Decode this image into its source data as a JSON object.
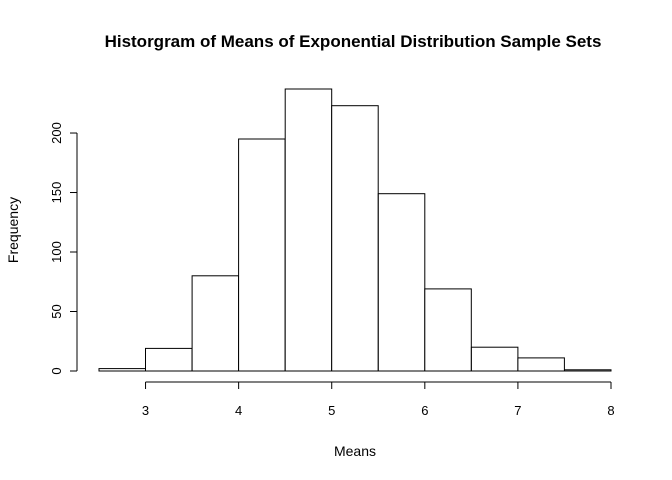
{
  "chart_data": {
    "type": "bar",
    "title": "Historgram of Means of Exponential Distribution Sample Sets",
    "xlabel": "Means",
    "ylabel": "Frequency",
    "bins": [
      {
        "start": 2.5,
        "end": 3.0,
        "count": 2
      },
      {
        "start": 3.0,
        "end": 3.5,
        "count": 19
      },
      {
        "start": 3.5,
        "end": 4.0,
        "count": 80
      },
      {
        "start": 4.0,
        "end": 4.5,
        "count": 195
      },
      {
        "start": 4.5,
        "end": 5.0,
        "count": 237
      },
      {
        "start": 5.0,
        "end": 5.5,
        "count": 223
      },
      {
        "start": 5.5,
        "end": 6.0,
        "count": 149
      },
      {
        "start": 6.0,
        "end": 6.5,
        "count": 69
      },
      {
        "start": 6.5,
        "end": 7.0,
        "count": 20
      },
      {
        "start": 7.0,
        "end": 7.5,
        "count": 11
      },
      {
        "start": 7.5,
        "end": 8.0,
        "count": 1
      }
    ],
    "x_ticks": [
      "3",
      "4",
      "5",
      "6",
      "7",
      "8"
    ],
    "y_ticks": [
      "0",
      "50",
      "100",
      "150",
      "200"
    ],
    "xlim": [
      2.5,
      8.0
    ],
    "ylim": [
      0,
      237
    ],
    "grid": false,
    "legend": "none"
  }
}
